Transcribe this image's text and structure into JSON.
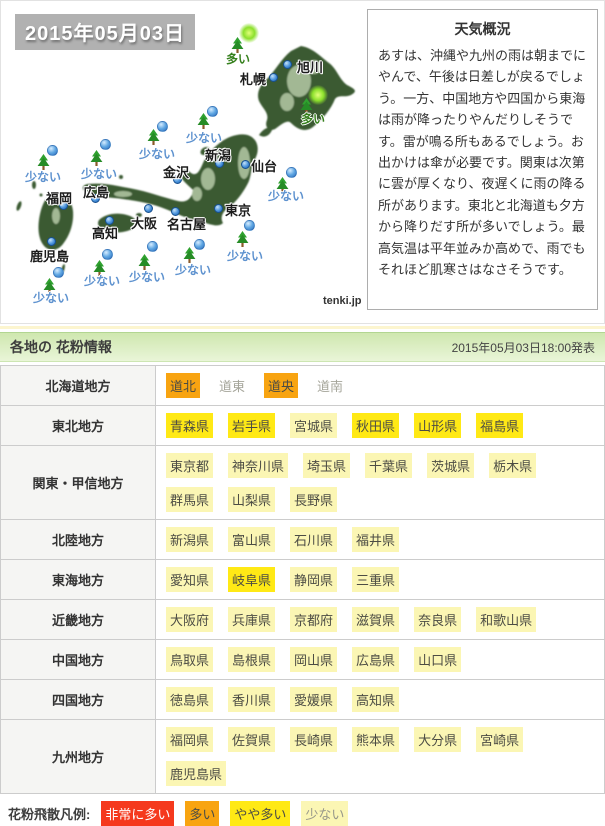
{
  "colors": {
    "very_many": "#f5391d",
    "many": "#f8a411",
    "somewhat": "#ffe915",
    "few": "#fbf6b4",
    "label_many": "#36801d",
    "label_few": "#5e92cf"
  },
  "map": {
    "date_label": "2015年05月03日",
    "credit": "tenki.jp",
    "level_labels": {
      "many": "多い",
      "few": "少ない"
    },
    "cities": [
      {
        "name": "旭川",
        "marker": [
          286,
          63
        ],
        "label": [
          296,
          56
        ]
      },
      {
        "name": "札幌",
        "marker": [
          272,
          76
        ],
        "label": [
          239,
          68
        ]
      },
      {
        "name": "仙台",
        "marker": [
          244,
          163
        ],
        "label": [
          250,
          155
        ]
      },
      {
        "name": "新潟",
        "marker": [
          218,
          162
        ],
        "label": [
          204,
          144
        ]
      },
      {
        "name": "金沢",
        "marker": [
          176,
          178
        ],
        "label": [
          162,
          161
        ]
      },
      {
        "name": "東京",
        "marker": [
          217,
          207
        ],
        "label": [
          224,
          199
        ]
      },
      {
        "name": "名古屋",
        "marker": [
          174,
          210
        ],
        "label": [
          166,
          213
        ]
      },
      {
        "name": "大阪",
        "marker": [
          147,
          207
        ],
        "label": [
          130,
          212
        ]
      },
      {
        "name": "広島",
        "marker": [
          94,
          197
        ],
        "label": [
          82,
          181
        ]
      },
      {
        "name": "福岡",
        "marker": [
          62,
          204
        ],
        "label": [
          45,
          187
        ]
      },
      {
        "name": "高知",
        "marker": [
          108,
          219
        ],
        "label": [
          91,
          222
        ]
      },
      {
        "name": "鹿児島",
        "marker": [
          50,
          240
        ],
        "label": [
          29,
          245
        ]
      }
    ],
    "pollen": [
      {
        "level": "many",
        "tree": [
          230,
          36
        ],
        "ball": [
          238,
          22
        ],
        "label": [
          225,
          49
        ]
      },
      {
        "level": "many",
        "tree": [
          299,
          97
        ],
        "ball": [
          307,
          84
        ],
        "label": [
          300,
          109
        ]
      },
      {
        "level": "few",
        "tree": [
          196,
          112
        ],
        "ball": [
          206,
          105
        ],
        "label": [
          185,
          128
        ]
      },
      {
        "level": "few",
        "tree": [
          146,
          128
        ],
        "ball": [
          156,
          120
        ],
        "label": [
          138,
          144
        ]
      },
      {
        "level": "few",
        "tree": [
          36,
          153
        ],
        "ball": [
          46,
          144
        ],
        "label": [
          24,
          167
        ]
      },
      {
        "level": "few",
        "tree": [
          89,
          149
        ],
        "ball": [
          99,
          138
        ],
        "label": [
          80,
          164
        ]
      },
      {
        "level": "few",
        "tree": [
          275,
          176
        ],
        "ball": [
          285,
          166
        ],
        "label": [
          267,
          186
        ]
      },
      {
        "level": "few",
        "tree": [
          42,
          277
        ],
        "ball": [
          52,
          266
        ],
        "label": [
          32,
          288
        ]
      },
      {
        "level": "few",
        "tree": [
          92,
          259
        ],
        "ball": [
          101,
          248
        ],
        "label": [
          83,
          271
        ]
      },
      {
        "level": "few",
        "tree": [
          137,
          253
        ],
        "ball": [
          146,
          240
        ],
        "label": [
          128,
          267
        ]
      },
      {
        "level": "few",
        "tree": [
          182,
          246
        ],
        "ball": [
          193,
          238
        ],
        "label": [
          174,
          260
        ]
      },
      {
        "level": "few",
        "tree": [
          235,
          230
        ],
        "ball": [
          243,
          219
        ],
        "label": [
          226,
          246
        ]
      }
    ]
  },
  "weather": {
    "title": "天気概況",
    "body": "あすは、沖縄や九州の雨は朝までにやんで、午後は日差しが戻るでしょう。一方、中国地方や四国から東海は雨が降ったりやんだりしそうです。雷が鳴る所もあるでしょう。お出かけは傘が必要です。関東は次第に雲が厚くなり、夜遅くに雨の降る所があります。東北と北海道も夕方から降りだす所が多いでしょう。最高気温は平年並みか高めで、雨でもそれほど肌寒さはなさそうです。"
  },
  "pollen_section": {
    "title": "各地の 花粉情報",
    "published": "2015年05月03日18:00発表",
    "rows": [
      {
        "region": "北海道地方",
        "areas": [
          {
            "name": "道北",
            "level": "many"
          },
          {
            "name": "道東",
            "level": "none"
          },
          {
            "name": "道央",
            "level": "many"
          },
          {
            "name": "道南",
            "level": "none"
          }
        ]
      },
      {
        "region": "東北地方",
        "areas": [
          {
            "name": "青森県",
            "level": "somewhat"
          },
          {
            "name": "岩手県",
            "level": "somewhat"
          },
          {
            "name": "宮城県",
            "level": "few"
          },
          {
            "name": "秋田県",
            "level": "somewhat"
          },
          {
            "name": "山形県",
            "level": "somewhat"
          },
          {
            "name": "福島県",
            "level": "somewhat"
          }
        ]
      },
      {
        "region": "関東・甲信地方",
        "areas": [
          {
            "name": "東京都",
            "level": "few"
          },
          {
            "name": "神奈川県",
            "level": "few"
          },
          {
            "name": "埼玉県",
            "level": "few"
          },
          {
            "name": "千葉県",
            "level": "few"
          },
          {
            "name": "茨城県",
            "level": "few"
          },
          {
            "name": "栃木県",
            "level": "few"
          },
          {
            "name": "群馬県",
            "level": "few"
          },
          {
            "name": "山梨県",
            "level": "few"
          },
          {
            "name": "長野県",
            "level": "few"
          }
        ]
      },
      {
        "region": "北陸地方",
        "areas": [
          {
            "name": "新潟県",
            "level": "few"
          },
          {
            "name": "富山県",
            "level": "few"
          },
          {
            "name": "石川県",
            "level": "few"
          },
          {
            "name": "福井県",
            "level": "few"
          }
        ]
      },
      {
        "region": "東海地方",
        "areas": [
          {
            "name": "愛知県",
            "level": "few"
          },
          {
            "name": "岐阜県",
            "level": "somewhat"
          },
          {
            "name": "静岡県",
            "level": "few"
          },
          {
            "name": "三重県",
            "level": "few"
          }
        ]
      },
      {
        "region": "近畿地方",
        "areas": [
          {
            "name": "大阪府",
            "level": "few"
          },
          {
            "name": "兵庫県",
            "level": "few"
          },
          {
            "name": "京都府",
            "level": "few"
          },
          {
            "name": "滋賀県",
            "level": "few"
          },
          {
            "name": "奈良県",
            "level": "few"
          },
          {
            "name": "和歌山県",
            "level": "few"
          }
        ]
      },
      {
        "region": "中国地方",
        "areas": [
          {
            "name": "鳥取県",
            "level": "few"
          },
          {
            "name": "島根県",
            "level": "few"
          },
          {
            "name": "岡山県",
            "level": "few"
          },
          {
            "name": "広島県",
            "level": "few"
          },
          {
            "name": "山口県",
            "level": "few"
          }
        ]
      },
      {
        "region": "四国地方",
        "areas": [
          {
            "name": "徳島県",
            "level": "few"
          },
          {
            "name": "香川県",
            "level": "few"
          },
          {
            "name": "愛媛県",
            "level": "few"
          },
          {
            "name": "高知県",
            "level": "few"
          }
        ]
      },
      {
        "region": "九州地方",
        "areas": [
          {
            "name": "福岡県",
            "level": "few"
          },
          {
            "name": "佐賀県",
            "level": "few"
          },
          {
            "name": "長崎県",
            "level": "few"
          },
          {
            "name": "熊本県",
            "level": "few"
          },
          {
            "name": "大分県",
            "level": "few"
          },
          {
            "name": "宮崎県",
            "level": "few"
          },
          {
            "name": "鹿児島県",
            "level": "few"
          }
        ]
      }
    ],
    "legend_label": "花粉飛散凡例:",
    "legend": [
      {
        "label": "非常に多い",
        "level": "very_many"
      },
      {
        "label": "多い",
        "level": "many"
      },
      {
        "label": "やや多い",
        "level": "somewhat"
      },
      {
        "label": "少ない",
        "level": "few"
      }
    ]
  }
}
